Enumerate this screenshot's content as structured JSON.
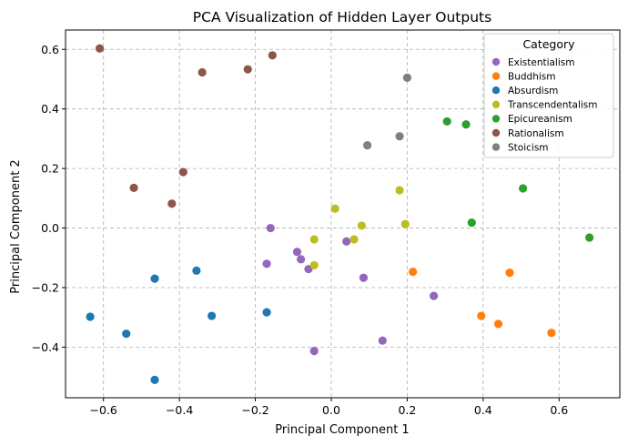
{
  "chart_data": {
    "type": "scatter",
    "title": "PCA Visualization of Hidden Layer Outputs",
    "xlabel": "Principal Component 1",
    "ylabel": "Principal Component 2",
    "xlim": [
      -0.7,
      0.76
    ],
    "ylim": [
      -0.57,
      0.665
    ],
    "xticks": [
      -0.6,
      -0.4,
      -0.2,
      0.0,
      0.2,
      0.4,
      0.6
    ],
    "yticks": [
      -0.4,
      -0.2,
      0.0,
      0.2,
      0.4,
      0.6
    ],
    "xtick_labels": [
      "−0.6",
      "−0.4",
      "−0.2",
      "0.0",
      "0.2",
      "0.4",
      "0.6"
    ],
    "ytick_labels": [
      "−0.4",
      "−0.2",
      "0.0",
      "0.2",
      "0.4",
      "0.6"
    ],
    "grid": true,
    "legend_title": "Category",
    "legend_position": "top-right",
    "series": [
      {
        "name": "Existentialism",
        "color": "#9467bd",
        "points": [
          [
            -0.16,
            0.0
          ],
          [
            -0.17,
            -0.12
          ],
          [
            -0.09,
            -0.08
          ],
          [
            -0.08,
            -0.105
          ],
          [
            -0.06,
            -0.138
          ],
          [
            0.04,
            -0.045
          ],
          [
            0.085,
            -0.167
          ],
          [
            0.27,
            -0.228
          ],
          [
            0.135,
            -0.378
          ],
          [
            -0.045,
            -0.413
          ]
        ]
      },
      {
        "name": "Buddhism",
        "color": "#ff7f0e",
        "points": [
          [
            0.215,
            -0.147
          ],
          [
            0.47,
            -0.15
          ],
          [
            0.395,
            -0.295
          ],
          [
            0.44,
            -0.322
          ],
          [
            0.58,
            -0.352
          ]
        ]
      },
      {
        "name": "Absurdism",
        "color": "#1f77b4",
        "points": [
          [
            -0.355,
            -0.143
          ],
          [
            -0.465,
            -0.17
          ],
          [
            -0.315,
            -0.295
          ],
          [
            -0.17,
            -0.283
          ],
          [
            -0.635,
            -0.298
          ],
          [
            -0.54,
            -0.355
          ],
          [
            -0.465,
            -0.51
          ]
        ]
      },
      {
        "name": "Transcendentalism",
        "color": "#bcbd22",
        "points": [
          [
            0.01,
            0.065
          ],
          [
            -0.045,
            -0.038
          ],
          [
            -0.045,
            -0.125
          ],
          [
            0.06,
            -0.038
          ],
          [
            0.08,
            0.008
          ],
          [
            0.18,
            0.127
          ],
          [
            0.195,
            0.013
          ]
        ]
      },
      {
        "name": "Epicureanism",
        "color": "#2ca02c",
        "points": [
          [
            0.305,
            0.358
          ],
          [
            0.355,
            0.348
          ],
          [
            0.505,
            0.133
          ],
          [
            0.37,
            0.018
          ],
          [
            0.68,
            -0.032
          ]
        ]
      },
      {
        "name": "Rationalism",
        "color": "#8c564b",
        "points": [
          [
            -0.61,
            0.603
          ],
          [
            -0.34,
            0.523
          ],
          [
            -0.22,
            0.533
          ],
          [
            -0.155,
            0.58
          ],
          [
            -0.39,
            0.188
          ],
          [
            -0.52,
            0.135
          ],
          [
            -0.42,
            0.082
          ]
        ]
      },
      {
        "name": "Stoicism",
        "color": "#7f7f7f",
        "points": [
          [
            0.2,
            0.505
          ],
          [
            0.095,
            0.278
          ],
          [
            0.18,
            0.308
          ]
        ]
      }
    ]
  }
}
